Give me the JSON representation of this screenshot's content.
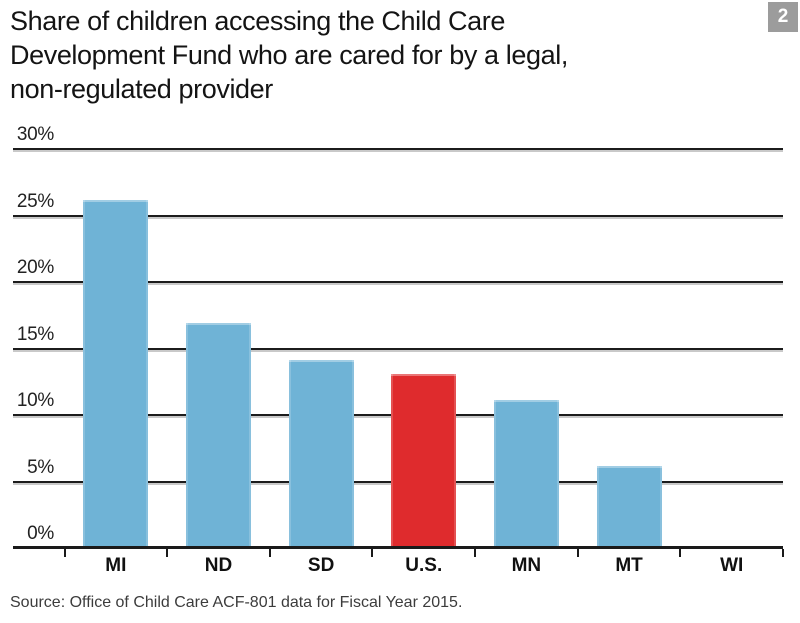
{
  "page": {
    "title_lines": [
      "Share of children accessing the Child Care",
      "Development Fund who are cared for by a legal,",
      "non-regulated provider"
    ],
    "figure_number": "2",
    "source": "Source: Office of Child Care ACF-801 data for Fiscal Year 2015."
  },
  "chart_data": {
    "type": "bar",
    "title": "Share of children accessing the Child Care Development Fund who are cared for by a legal, non-regulated provider",
    "categories": [
      "MI",
      "ND",
      "SD",
      "U.S.",
      "MN",
      "MT",
      "WI"
    ],
    "values": [
      26,
      16.8,
      14,
      12.9,
      11,
      6,
      0
    ],
    "bar_colors": [
      "#6fb3d6",
      "#6fb3d6",
      "#6fb3d6",
      "#df2b2d",
      "#6fb3d6",
      "#6fb3d6",
      "#6fb3d6"
    ],
    "highlight_category": "U.S.",
    "colors": {
      "bar_default": "#6fb3d6",
      "bar_highlight": "#df2b2d",
      "badge_gray": "#9c9c9c",
      "text": "#141414"
    },
    "xlabel": "",
    "ylabel": "",
    "ylim": [
      0,
      30
    ],
    "yticks": [
      {
        "value": 30,
        "label": "30%"
      },
      {
        "value": 25,
        "label": "25%"
      },
      {
        "value": 20,
        "label": "20%"
      },
      {
        "value": 15,
        "label": "15%"
      },
      {
        "value": 10,
        "label": "10%"
      },
      {
        "value": 5,
        "label": "5%"
      },
      {
        "value": 0,
        "label": "0%"
      }
    ],
    "grid": true,
    "legend": false,
    "source": "Source: Office of Child Care ACF-801 data for Fiscal Year 2015."
  }
}
